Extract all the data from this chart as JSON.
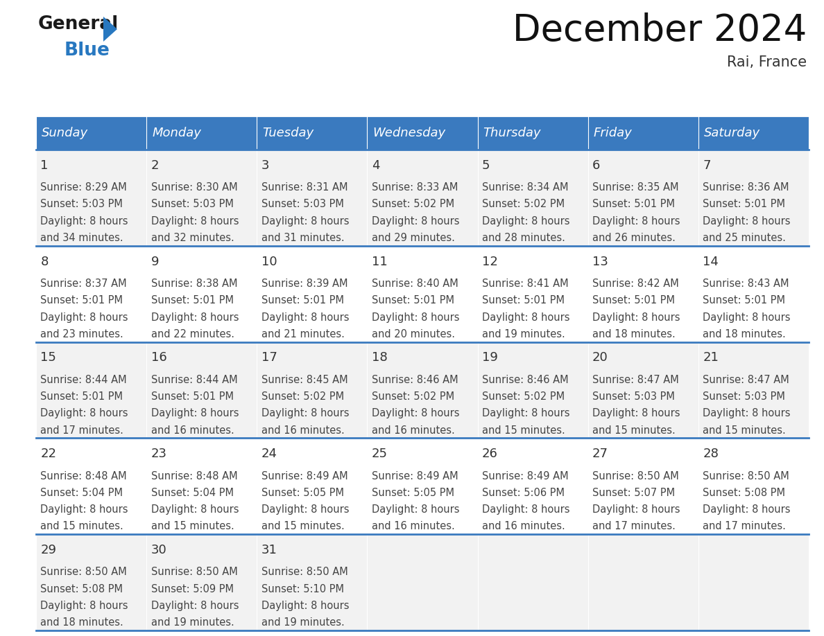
{
  "title": "December 2024",
  "subtitle": "Rai, France",
  "header_color": "#3a7abf",
  "header_text_color": "#ffffff",
  "day_names": [
    "Sunday",
    "Monday",
    "Tuesday",
    "Wednesday",
    "Thursday",
    "Friday",
    "Saturday"
  ],
  "bg_color": "#ffffff",
  "cell_bg_row0": "#f2f2f2",
  "cell_bg_row1": "#ffffff",
  "row_separator_color": "#3a7abf",
  "days": [
    {
      "date": 1,
      "sunrise": "8:29 AM",
      "sunset": "5:03 PM",
      "dl1": "Daylight: 8 hours",
      "dl2": "and 34 minutes."
    },
    {
      "date": 2,
      "sunrise": "8:30 AM",
      "sunset": "5:03 PM",
      "dl1": "Daylight: 8 hours",
      "dl2": "and 32 minutes."
    },
    {
      "date": 3,
      "sunrise": "8:31 AM",
      "sunset": "5:03 PM",
      "dl1": "Daylight: 8 hours",
      "dl2": "and 31 minutes."
    },
    {
      "date": 4,
      "sunrise": "8:33 AM",
      "sunset": "5:02 PM",
      "dl1": "Daylight: 8 hours",
      "dl2": "and 29 minutes."
    },
    {
      "date": 5,
      "sunrise": "8:34 AM",
      "sunset": "5:02 PM",
      "dl1": "Daylight: 8 hours",
      "dl2": "and 28 minutes."
    },
    {
      "date": 6,
      "sunrise": "8:35 AM",
      "sunset": "5:01 PM",
      "dl1": "Daylight: 8 hours",
      "dl2": "and 26 minutes."
    },
    {
      "date": 7,
      "sunrise": "8:36 AM",
      "sunset": "5:01 PM",
      "dl1": "Daylight: 8 hours",
      "dl2": "and 25 minutes."
    },
    {
      "date": 8,
      "sunrise": "8:37 AM",
      "sunset": "5:01 PM",
      "dl1": "Daylight: 8 hours",
      "dl2": "and 23 minutes."
    },
    {
      "date": 9,
      "sunrise": "8:38 AM",
      "sunset": "5:01 PM",
      "dl1": "Daylight: 8 hours",
      "dl2": "and 22 minutes."
    },
    {
      "date": 10,
      "sunrise": "8:39 AM",
      "sunset": "5:01 PM",
      "dl1": "Daylight: 8 hours",
      "dl2": "and 21 minutes."
    },
    {
      "date": 11,
      "sunrise": "8:40 AM",
      "sunset": "5:01 PM",
      "dl1": "Daylight: 8 hours",
      "dl2": "and 20 minutes."
    },
    {
      "date": 12,
      "sunrise": "8:41 AM",
      "sunset": "5:01 PM",
      "dl1": "Daylight: 8 hours",
      "dl2": "and 19 minutes."
    },
    {
      "date": 13,
      "sunrise": "8:42 AM",
      "sunset": "5:01 PM",
      "dl1": "Daylight: 8 hours",
      "dl2": "and 18 minutes."
    },
    {
      "date": 14,
      "sunrise": "8:43 AM",
      "sunset": "5:01 PM",
      "dl1": "Daylight: 8 hours",
      "dl2": "and 18 minutes."
    },
    {
      "date": 15,
      "sunrise": "8:44 AM",
      "sunset": "5:01 PM",
      "dl1": "Daylight: 8 hours",
      "dl2": "and 17 minutes."
    },
    {
      "date": 16,
      "sunrise": "8:44 AM",
      "sunset": "5:01 PM",
      "dl1": "Daylight: 8 hours",
      "dl2": "and 16 minutes."
    },
    {
      "date": 17,
      "sunrise": "8:45 AM",
      "sunset": "5:02 PM",
      "dl1": "Daylight: 8 hours",
      "dl2": "and 16 minutes."
    },
    {
      "date": 18,
      "sunrise": "8:46 AM",
      "sunset": "5:02 PM",
      "dl1": "Daylight: 8 hours",
      "dl2": "and 16 minutes."
    },
    {
      "date": 19,
      "sunrise": "8:46 AM",
      "sunset": "5:02 PM",
      "dl1": "Daylight: 8 hours",
      "dl2": "and 15 minutes."
    },
    {
      "date": 20,
      "sunrise": "8:47 AM",
      "sunset": "5:03 PM",
      "dl1": "Daylight: 8 hours",
      "dl2": "and 15 minutes."
    },
    {
      "date": 21,
      "sunrise": "8:47 AM",
      "sunset": "5:03 PM",
      "dl1": "Daylight: 8 hours",
      "dl2": "and 15 minutes."
    },
    {
      "date": 22,
      "sunrise": "8:48 AM",
      "sunset": "5:04 PM",
      "dl1": "Daylight: 8 hours",
      "dl2": "and 15 minutes."
    },
    {
      "date": 23,
      "sunrise": "8:48 AM",
      "sunset": "5:04 PM",
      "dl1": "Daylight: 8 hours",
      "dl2": "and 15 minutes."
    },
    {
      "date": 24,
      "sunrise": "8:49 AM",
      "sunset": "5:05 PM",
      "dl1": "Daylight: 8 hours",
      "dl2": "and 15 minutes."
    },
    {
      "date": 25,
      "sunrise": "8:49 AM",
      "sunset": "5:05 PM",
      "dl1": "Daylight: 8 hours",
      "dl2": "and 16 minutes."
    },
    {
      "date": 26,
      "sunrise": "8:49 AM",
      "sunset": "5:06 PM",
      "dl1": "Daylight: 8 hours",
      "dl2": "and 16 minutes."
    },
    {
      "date": 27,
      "sunrise": "8:50 AM",
      "sunset": "5:07 PM",
      "dl1": "Daylight: 8 hours",
      "dl2": "and 17 minutes."
    },
    {
      "date": 28,
      "sunrise": "8:50 AM",
      "sunset": "5:08 PM",
      "dl1": "Daylight: 8 hours",
      "dl2": "and 17 minutes."
    },
    {
      "date": 29,
      "sunrise": "8:50 AM",
      "sunset": "5:08 PM",
      "dl1": "Daylight: 8 hours",
      "dl2": "and 18 minutes."
    },
    {
      "date": 30,
      "sunrise": "8:50 AM",
      "sunset": "5:09 PM",
      "dl1": "Daylight: 8 hours",
      "dl2": "and 19 minutes."
    },
    {
      "date": 31,
      "sunrise": "8:50 AM",
      "sunset": "5:10 PM",
      "dl1": "Daylight: 8 hours",
      "dl2": "and 19 minutes."
    }
  ],
  "logo_general_color": "#1a1a1a",
  "logo_blue_color": "#2878c0",
  "title_fontsize": 38,
  "subtitle_fontsize": 15,
  "header_fontsize": 13,
  "date_fontsize": 13,
  "cell_fontsize": 10.5
}
